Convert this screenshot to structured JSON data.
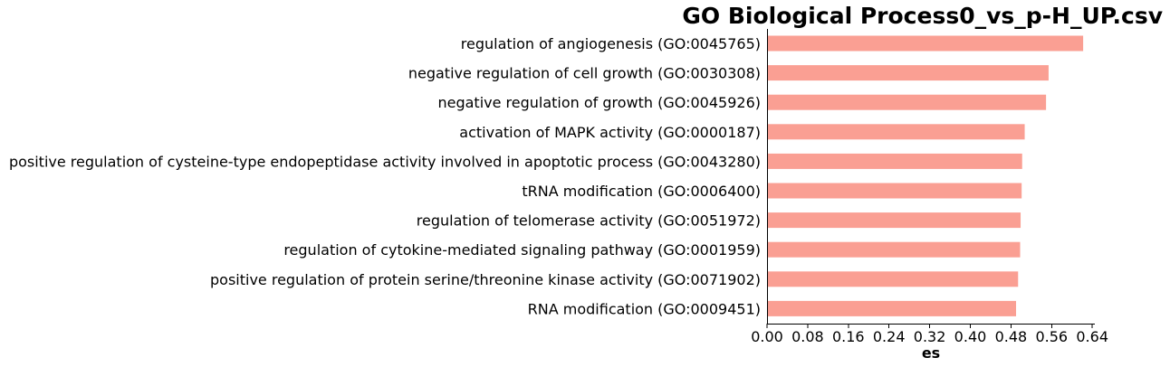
{
  "chart_data": {
    "type": "bar",
    "orientation": "horizontal",
    "title": "GO Biological Process0_vs_p-H_UP.csv",
    "xlabel": "es",
    "ylabel": "",
    "categories": [
      "regulation of angiogenesis (GO:0045765)",
      "negative regulation of cell growth (GO:0030308)",
      "negative regulation of growth (GO:0045926)",
      "activation of MAPK activity (GO:0000187)",
      "positive regulation of cysteine-type endopeptidase activity involved in apoptotic process (GO:0043280)",
      "tRNA modification (GO:0006400)",
      "regulation of telomerase activity (GO:0051972)",
      "regulation of cytokine-mediated signaling pathway (GO:0001959)",
      "positive regulation of protein serine/threonine kinase activity (GO:0071902)",
      "RNA modification (GO:0009451)"
    ],
    "values": [
      0.622,
      0.554,
      0.549,
      0.507,
      0.502,
      0.501,
      0.499,
      0.498,
      0.494,
      0.49
    ],
    "xticks": [
      "0.00",
      "0.08",
      "0.16",
      "0.24",
      "0.32",
      "0.40",
      "0.48",
      "0.56",
      "0.64"
    ],
    "xlim": [
      0,
      0.645
    ],
    "grid": false,
    "bar_color": "#fa9f93",
    "spines": [
      "left",
      "bottom"
    ]
  }
}
